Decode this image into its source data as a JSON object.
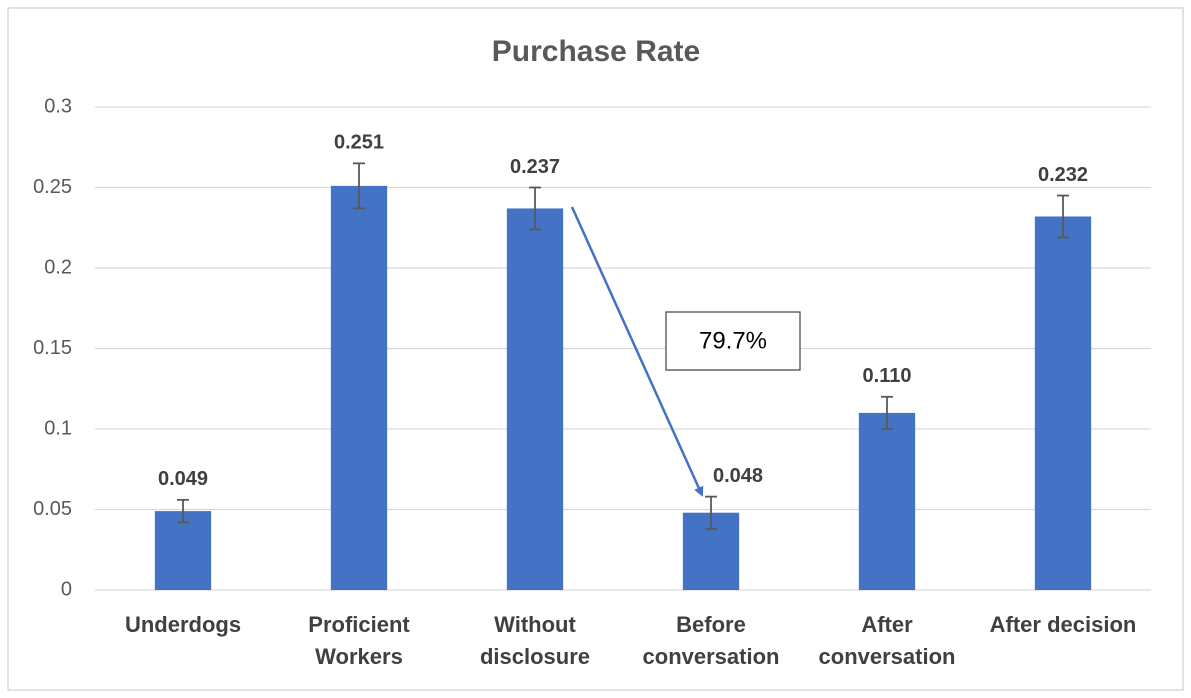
{
  "chart_data": {
    "type": "bar",
    "title": "Purchase Rate",
    "categories": [
      [
        "Underdogs"
      ],
      [
        "Proficient",
        "Workers"
      ],
      [
        "Without",
        "disclosure"
      ],
      [
        "Before",
        "conversation"
      ],
      [
        "After",
        "conversation"
      ],
      [
        "After decision"
      ]
    ],
    "values": [
      0.049,
      0.251,
      0.237,
      0.048,
      0.11,
      0.232
    ],
    "value_labels": [
      "0.049",
      "0.251",
      "0.237",
      "0.048",
      "0.110",
      "0.232"
    ],
    "errors": [
      0.007,
      0.014,
      0.013,
      0.01,
      0.01,
      0.013
    ],
    "color": "#4472c4",
    "ylim": [
      0,
      0.3
    ],
    "yticks": [
      0,
      0.05,
      0.1,
      0.15,
      0.2,
      0.25,
      0.3
    ],
    "grid": true,
    "annotations": [
      {
        "text": "79.7%"
      }
    ]
  }
}
